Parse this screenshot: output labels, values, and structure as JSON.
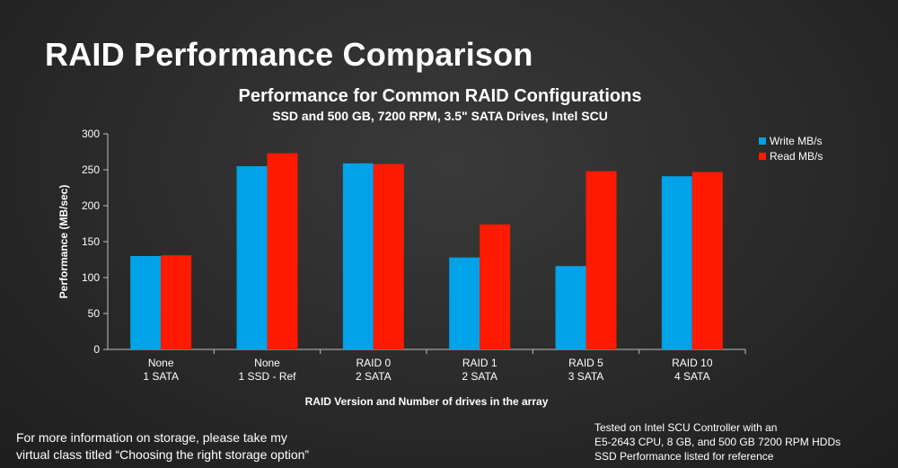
{
  "slide": {
    "title": "RAID Performance Comparison"
  },
  "colors": {
    "write": "#00a2e8",
    "read": "#ff1a00",
    "axis": "#bfbfbf",
    "text": "#ffffff"
  },
  "chart_data": {
    "type": "bar",
    "title": "Performance for Common RAID Configurations",
    "subtitle": "SSD and 500 GB, 7200 RPM, 3.5\" SATA Drives, Intel SCU",
    "xlabel": "RAID Version and Number of drives in the array",
    "ylabel": "Performance (MB/sec)",
    "ylim": [
      0,
      300
    ],
    "yticks": [
      0,
      50,
      100,
      150,
      200,
      250,
      300
    ],
    "grid": false,
    "legend_position": "right",
    "categories": [
      [
        "None",
        "1 SATA"
      ],
      [
        "None",
        "1 SSD - Ref"
      ],
      [
        "RAID 0",
        "2 SATA"
      ],
      [
        "RAID 1",
        "2 SATA"
      ],
      [
        "RAID 5",
        "3 SATA"
      ],
      [
        "RAID 10",
        "4 SATA"
      ]
    ],
    "series": [
      {
        "name": "Write MB/s",
        "values": [
          130,
          255,
          259,
          128,
          116,
          241
        ]
      },
      {
        "name": "Read MB/s",
        "values": [
          131,
          273,
          258,
          174,
          248,
          247
        ]
      }
    ]
  },
  "footer": {
    "left_lines": [
      "For more information on storage, please take my",
      "virtual class titled “Choosing the right storage option”"
    ],
    "right_lines": [
      "Tested on Intel SCU Controller with an",
      "E5-2643 CPU, 8 GB, and 500 GB 7200 RPM HDDs",
      "SSD Performance listed for reference"
    ]
  }
}
